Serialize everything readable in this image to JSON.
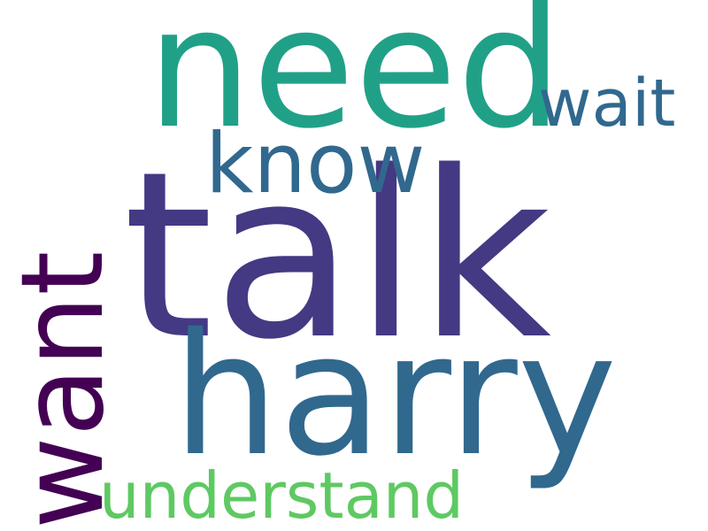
{
  "wordcloud": {
    "words": [
      {
        "key": "talk",
        "text": "talk",
        "color": "#443983"
      },
      {
        "key": "need",
        "text": "need",
        "color": "#21A088"
      },
      {
        "key": "harry",
        "text": "harry",
        "color": "#31688E"
      },
      {
        "key": "want",
        "text": "want",
        "color": "#440154"
      },
      {
        "key": "know",
        "text": "know",
        "color": "#31688E"
      },
      {
        "key": "wait",
        "text": "wait",
        "color": "#31688E"
      },
      {
        "key": "understand",
        "text": "understand",
        "color": "#5EC962"
      }
    ]
  }
}
